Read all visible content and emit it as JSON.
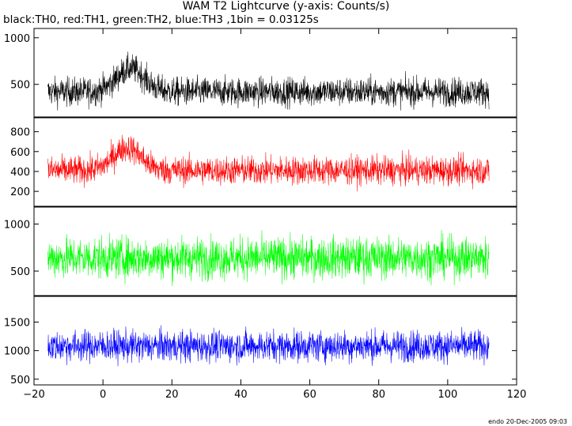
{
  "chart_data": {
    "type": "line",
    "title": "WAM T2 Lightcurve (y-axis: Counts/s)",
    "subtitle": "black:TH0, red:TH1, green:TH2, blue:TH3 ,1bin = 0.03125s",
    "footer": "endo 20-Dec-2005 09:03",
    "x_axis": {
      "range": [
        -20,
        120
      ],
      "ticks": [
        -20,
        0,
        20,
        40,
        60,
        80,
        100,
        120
      ],
      "tick_labels": [
        "−20",
        "0",
        "20",
        "40",
        "60",
        "80",
        "100",
        "120"
      ]
    },
    "panels": [
      {
        "series": "TH0",
        "color": "#000000",
        "ylim": [
          150,
          1100
        ],
        "yticks": [
          500,
          1000
        ],
        "data_x": [
          -16,
          112
        ],
        "baseline": 420,
        "noise": 140,
        "burst": {
          "center": 8,
          "width": 4,
          "amplitude": 250
        }
      },
      {
        "series": "TH1",
        "color": "#ff0000",
        "ylim": [
          50,
          940
        ],
        "yticks": [
          200,
          400,
          600,
          800
        ],
        "data_x": [
          -16,
          112
        ],
        "baseline": 410,
        "noise": 130,
        "burst": {
          "center": 7,
          "width": 4,
          "amplitude": 230
        }
      },
      {
        "series": "TH2",
        "color": "#00ff00",
        "ylim": [
          240,
          1180
        ],
        "yticks": [
          500,
          1000
        ],
        "data_x": [
          -16,
          112
        ],
        "baseline": 640,
        "noise": 200,
        "burst": null
      },
      {
        "series": "TH3",
        "color": "#0000ff",
        "ylim": [
          400,
          1950
        ],
        "yticks": [
          500,
          1000,
          1500
        ],
        "data_x": [
          -16,
          112
        ],
        "baseline": 1080,
        "noise": 250,
        "burst": null
      }
    ]
  }
}
